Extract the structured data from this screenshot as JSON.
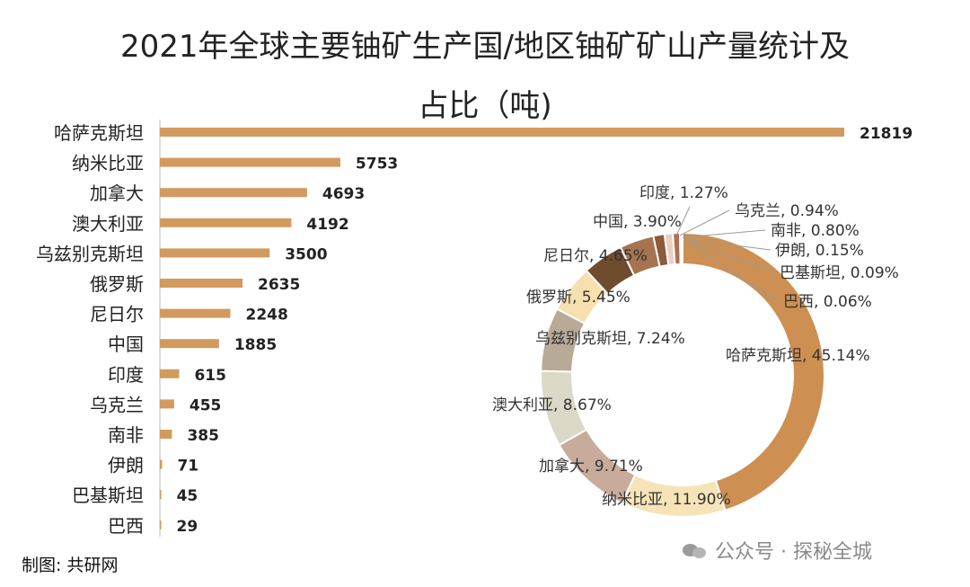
{
  "title_line1": "2021年全球主要铀矿生产国/地区铀矿矿山产量统计及",
  "title_line2": "占比（吨)",
  "footer": "制图: 共研网",
  "watermark": "公众号 · 探秘全城",
  "colors": {
    "bar": "#d29a5e",
    "text": "#222222"
  },
  "chart_data": [
    {
      "type": "bar",
      "orientation": "horizontal",
      "categories": [
        "哈萨克斯坦",
        "纳米比亚",
        "加拿大",
        "澳大利亚",
        "乌兹别克斯坦",
        "俄罗斯",
        "尼日尔",
        "中国",
        "印度",
        "乌克兰",
        "南非",
        "伊朗",
        "巴基斯坦",
        "巴西"
      ],
      "values": [
        21819,
        5753,
        4693,
        4192,
        3500,
        2635,
        2248,
        1885,
        615,
        455,
        385,
        71,
        45,
        29
      ],
      "value_labels": [
        "21819",
        "5753",
        "4693",
        "4192",
        "3500",
        "2635",
        "2248",
        "1885",
        "615",
        "455",
        "385",
        "71",
        "45",
        "29"
      ],
      "xlim": [
        0,
        21819
      ]
    },
    {
      "type": "pie",
      "style": "donut",
      "labels": [
        "哈萨克斯坦",
        "纳米比亚",
        "加拿大",
        "澳大利亚",
        "乌兹别克斯坦",
        "俄罗斯",
        "尼日尔",
        "中国",
        "印度",
        "乌克兰",
        "南非",
        "伊朗",
        "巴基斯坦",
        "巴西"
      ],
      "values": [
        45.14,
        11.9,
        9.71,
        8.67,
        7.24,
        5.45,
        4.65,
        3.9,
        1.27,
        0.94,
        0.8,
        0.15,
        0.09,
        0.06
      ],
      "label_text": [
        "哈萨克斯坦, 45.14%",
        "纳米比亚, 11.90%",
        "加拿大, 9.71%",
        "澳大利亚, 8.67%",
        "乌兹别克斯坦, 7.24%",
        "俄罗斯, 5.45%",
        "尼日尔, 4.65%",
        "中国, 3.90%",
        "印度, 1.27%",
        "乌克兰, 0.94%",
        "南非, 0.80%",
        "伊朗, 0.15%",
        "巴基斯坦, 0.09%",
        "巴西, 0.06%"
      ],
      "colors": [
        "#cd8f52",
        "#f6e4b8",
        "#c8ab9b",
        "#dcd8c8",
        "#b9aa98",
        "#f7dfb0",
        "#6f4c2e",
        "#a47550",
        "#8d5a3c",
        "#ead0c2",
        "#b06e50",
        "#7a5a48",
        "#d7b07e",
        "#3f2a1f"
      ]
    }
  ]
}
